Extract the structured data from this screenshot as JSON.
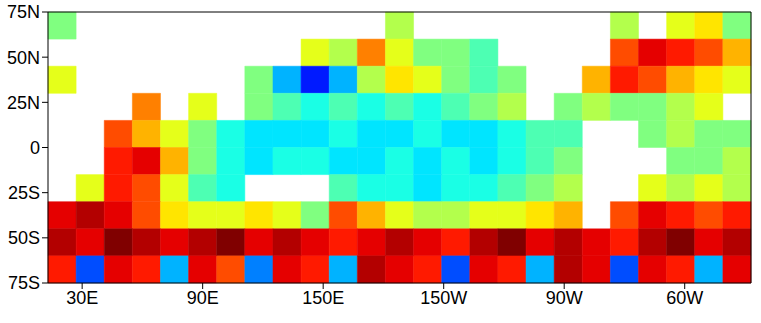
{
  "chart_data": {
    "type": "heatmap",
    "xlim": [
      13,
      363
    ],
    "ylim": [
      -75,
      75
    ],
    "xticks": [
      {
        "value": 30,
        "label": "30E"
      },
      {
        "value": 90,
        "label": "90E"
      },
      {
        "value": 150,
        "label": "150E"
      },
      {
        "value": 210,
        "label": "150W"
      },
      {
        "value": 270,
        "label": "90W"
      },
      {
        "value": 330,
        "label": "60W"
      }
    ],
    "yticks": [
      {
        "value": 75,
        "label": "75N"
      },
      {
        "value": 50,
        "label": "50N"
      },
      {
        "value": 25,
        "label": "25N"
      },
      0,
      {
        "value": -25,
        "label": "25S"
      },
      {
        "value": -50,
        "label": "50S"
      },
      {
        "value": -75,
        "label": "75S"
      }
    ],
    "x_edges": [
      13,
      27,
      41,
      55,
      69,
      83,
      97,
      111,
      125,
      139,
      153,
      167,
      181,
      195,
      209,
      223,
      237,
      251,
      265,
      279,
      293,
      307,
      321,
      335,
      349,
      363
    ],
    "y_edges": [
      75,
      60,
      45,
      30,
      15,
      0,
      -15,
      -30,
      -45,
      -60,
      -75
    ],
    "color_range": [
      0,
      1
    ],
    "cells": [
      [
        0.5,
        null,
        null,
        null,
        null,
        null,
        null,
        null,
        null,
        null,
        null,
        null,
        0.55,
        null,
        null,
        null,
        null,
        null,
        null,
        null,
        0.55,
        null,
        0.6,
        0.65,
        0.5
      ],
      [
        null,
        null,
        null,
        null,
        null,
        null,
        null,
        null,
        null,
        0.6,
        0.55,
        0.75,
        0.6,
        0.5,
        0.5,
        0.45,
        null,
        null,
        null,
        null,
        0.8,
        0.9,
        0.85,
        0.8,
        0.7
      ],
      [
        0.6,
        null,
        null,
        null,
        null,
        null,
        null,
        0.5,
        0.3,
        0.15,
        0.3,
        0.55,
        0.65,
        0.6,
        0.5,
        0.45,
        0.5,
        null,
        null,
        0.7,
        0.85,
        0.8,
        0.7,
        0.65,
        0.6
      ],
      [
        null,
        null,
        null,
        0.75,
        null,
        0.6,
        null,
        0.5,
        0.45,
        0.4,
        0.45,
        0.4,
        0.45,
        0.4,
        0.45,
        0.5,
        0.55,
        null,
        0.5,
        0.55,
        0.5,
        0.5,
        0.55,
        0.6,
        null
      ],
      [
        null,
        null,
        0.8,
        0.7,
        0.6,
        0.5,
        0.4,
        0.35,
        0.35,
        0.35,
        0.4,
        0.35,
        0.35,
        0.4,
        0.35,
        0.35,
        0.4,
        0.45,
        0.45,
        null,
        null,
        0.5,
        0.55,
        0.5,
        0.5
      ],
      [
        null,
        null,
        0.85,
        0.9,
        0.7,
        0.5,
        0.4,
        0.35,
        0.4,
        0.4,
        0.35,
        0.35,
        0.4,
        0.35,
        0.4,
        0.35,
        0.4,
        0.45,
        0.5,
        null,
        null,
        null,
        0.5,
        0.5,
        0.55
      ],
      [
        null,
        0.6,
        0.85,
        0.8,
        0.6,
        0.45,
        0.4,
        null,
        null,
        null,
        0.45,
        0.4,
        0.4,
        0.35,
        0.4,
        0.4,
        0.45,
        0.5,
        0.55,
        null,
        null,
        0.6,
        0.55,
        0.6,
        0.55
      ],
      [
        0.9,
        0.95,
        0.9,
        0.8,
        0.65,
        0.6,
        0.6,
        0.65,
        0.6,
        0.5,
        0.8,
        0.7,
        0.6,
        0.55,
        0.55,
        0.6,
        0.6,
        0.65,
        0.7,
        null,
        0.8,
        0.9,
        0.85,
        0.8,
        0.85
      ],
      [
        0.95,
        0.9,
        1.0,
        0.95,
        0.9,
        0.95,
        1.0,
        0.9,
        0.95,
        0.9,
        0.85,
        0.9,
        0.95,
        0.9,
        0.85,
        0.95,
        1.0,
        0.9,
        0.95,
        0.9,
        0.85,
        0.95,
        1.0,
        0.9,
        0.95
      ],
      [
        0.85,
        0.2,
        0.9,
        0.85,
        0.3,
        0.9,
        0.8,
        0.25,
        0.9,
        0.85,
        0.3,
        0.95,
        0.9,
        0.85,
        0.2,
        0.9,
        0.85,
        0.3,
        0.95,
        0.9,
        0.2,
        0.9,
        0.85,
        0.3,
        0.9
      ]
    ]
  }
}
